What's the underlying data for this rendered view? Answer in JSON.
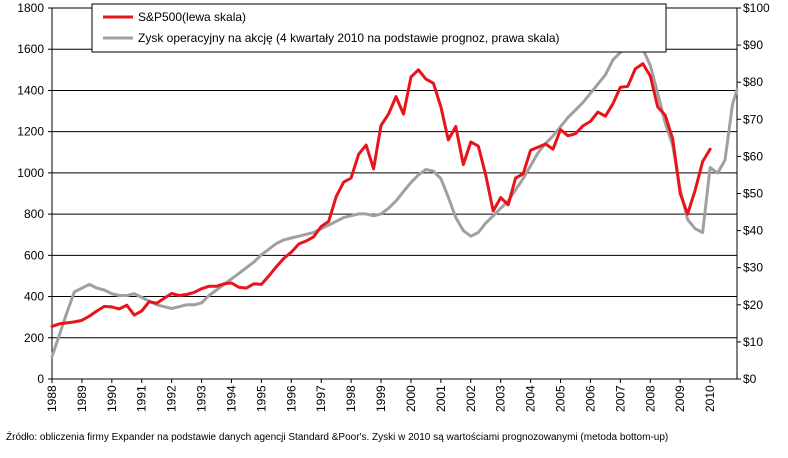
{
  "chart_data": {
    "type": "line",
    "title": "",
    "x_ticks": [
      "1988",
      "1989",
      "1990",
      "1991",
      "1992",
      "1993",
      "1994",
      "1995",
      "1996",
      "1997",
      "1998",
      "1999",
      "2000",
      "2001",
      "2002",
      "2003",
      "2004",
      "2005",
      "2006",
      "2007",
      "2008",
      "2009",
      "2010"
    ],
    "xlim": [
      1988,
      2010.9
    ],
    "y_left": {
      "ticks": [
        "0",
        "200",
        "400",
        "600",
        "800",
        "1000",
        "1200",
        "1400",
        "1600",
        "1800"
      ],
      "lim": [
        0,
        1800
      ]
    },
    "y_right": {
      "ticks": [
        "$0",
        "$10",
        "$20",
        "$30",
        "$40",
        "$50",
        "$60",
        "$70",
        "$80",
        "$90",
        "$100"
      ],
      "lim": [
        0,
        100
      ]
    },
    "grid": "horizontal",
    "legend_position": "top",
    "series": [
      {
        "name": "S&P500(lewa skala)",
        "axis": "left",
        "color": "#e8141c",
        "points": [
          [
            1988.0,
            255
          ],
          [
            1988.25,
            268
          ],
          [
            1988.5,
            272
          ],
          [
            1988.75,
            277
          ],
          [
            1989.0,
            285
          ],
          [
            1989.25,
            305
          ],
          [
            1989.5,
            330
          ],
          [
            1989.75,
            352
          ],
          [
            1990.0,
            350
          ],
          [
            1990.25,
            340
          ],
          [
            1990.5,
            358
          ],
          [
            1990.75,
            310
          ],
          [
            1991.0,
            330
          ],
          [
            1991.25,
            375
          ],
          [
            1991.5,
            368
          ],
          [
            1991.75,
            392
          ],
          [
            1992.0,
            415
          ],
          [
            1992.25,
            405
          ],
          [
            1992.5,
            410
          ],
          [
            1992.75,
            420
          ],
          [
            1993.0,
            438
          ],
          [
            1993.25,
            450
          ],
          [
            1993.5,
            450
          ],
          [
            1993.75,
            462
          ],
          [
            1994.0,
            466
          ],
          [
            1994.25,
            445
          ],
          [
            1994.5,
            441
          ],
          [
            1994.75,
            462
          ],
          [
            1995.0,
            459
          ],
          [
            1995.25,
            500
          ],
          [
            1995.5,
            545
          ],
          [
            1995.75,
            585
          ],
          [
            1996.0,
            615
          ],
          [
            1996.25,
            655
          ],
          [
            1996.5,
            670
          ],
          [
            1996.75,
            690
          ],
          [
            1997.0,
            740
          ],
          [
            1997.25,
            765
          ],
          [
            1997.5,
            885
          ],
          [
            1997.75,
            955
          ],
          [
            1998.0,
            975
          ],
          [
            1998.25,
            1090
          ],
          [
            1998.5,
            1135
          ],
          [
            1998.75,
            1020
          ],
          [
            1999.0,
            1230
          ],
          [
            1999.25,
            1285
          ],
          [
            1999.5,
            1370
          ],
          [
            1999.75,
            1285
          ],
          [
            2000.0,
            1465
          ],
          [
            2000.25,
            1500
          ],
          [
            2000.5,
            1455
          ],
          [
            2000.75,
            1435
          ],
          [
            2001.0,
            1320
          ],
          [
            2001.25,
            1160
          ],
          [
            2001.5,
            1225
          ],
          [
            2001.75,
            1040
          ],
          [
            2002.0,
            1150
          ],
          [
            2002.25,
            1130
          ],
          [
            2002.5,
            990
          ],
          [
            2002.75,
            815
          ],
          [
            2003.0,
            880
          ],
          [
            2003.25,
            845
          ],
          [
            2003.5,
            975
          ],
          [
            2003.75,
            995
          ],
          [
            2004.0,
            1110
          ],
          [
            2004.25,
            1125
          ],
          [
            2004.5,
            1140
          ],
          [
            2004.75,
            1115
          ],
          [
            2005.0,
            1210
          ],
          [
            2005.25,
            1180
          ],
          [
            2005.5,
            1190
          ],
          [
            2005.75,
            1228
          ],
          [
            2006.0,
            1250
          ],
          [
            2006.25,
            1295
          ],
          [
            2006.5,
            1275
          ],
          [
            2006.75,
            1335
          ],
          [
            2007.0,
            1415
          ],
          [
            2007.25,
            1420
          ],
          [
            2007.5,
            1505
          ],
          [
            2007.75,
            1530
          ],
          [
            2008.0,
            1470
          ],
          [
            2008.25,
            1320
          ],
          [
            2008.5,
            1280
          ],
          [
            2008.75,
            1165
          ],
          [
            2009.0,
            900
          ],
          [
            2009.25,
            800
          ],
          [
            2009.5,
            915
          ],
          [
            2009.75,
            1055
          ],
          [
            2010.0,
            1115
          ]
        ]
      },
      {
        "name": "Zysk operacyjny na akcję (4 kwartały 2010 na podstawie prognoz, prawa skala)",
        "axis": "right",
        "color": "#a0a0a0",
        "points": [
          [
            1988.0,
            6
          ],
          [
            1988.25,
            12
          ],
          [
            1988.5,
            18
          ],
          [
            1988.75,
            23.5
          ],
          [
            1989.0,
            24.5
          ],
          [
            1989.25,
            25.5
          ],
          [
            1989.5,
            24.5
          ],
          [
            1989.75,
            24
          ],
          [
            1990.0,
            23
          ],
          [
            1990.25,
            22.5
          ],
          [
            1990.5,
            22.5
          ],
          [
            1990.75,
            23
          ],
          [
            1991.0,
            22
          ],
          [
            1991.25,
            21
          ],
          [
            1991.5,
            20
          ],
          [
            1991.75,
            19.5
          ],
          [
            1992.0,
            19
          ],
          [
            1992.25,
            19.5
          ],
          [
            1992.5,
            20
          ],
          [
            1992.75,
            20
          ],
          [
            1993.0,
            20.5
          ],
          [
            1993.25,
            22.5
          ],
          [
            1993.5,
            24
          ],
          [
            1993.75,
            25.5
          ],
          [
            1994.0,
            27
          ],
          [
            1994.25,
            28.5
          ],
          [
            1994.5,
            30
          ],
          [
            1994.75,
            31.5
          ],
          [
            1995.0,
            33.5
          ],
          [
            1995.25,
            35
          ],
          [
            1995.5,
            36.5
          ],
          [
            1995.75,
            37.5
          ],
          [
            1996.0,
            38
          ],
          [
            1996.25,
            38.5
          ],
          [
            1996.5,
            39
          ],
          [
            1996.75,
            39.5
          ],
          [
            1997.0,
            40.5
          ],
          [
            1997.25,
            41.5
          ],
          [
            1997.5,
            42.5
          ],
          [
            1997.75,
            43.5
          ],
          [
            1998.0,
            44
          ],
          [
            1998.25,
            44.5
          ],
          [
            1998.5,
            44.5
          ],
          [
            1998.75,
            44
          ],
          [
            1999.0,
            44.5
          ],
          [
            1999.25,
            46
          ],
          [
            1999.5,
            48
          ],
          [
            1999.75,
            50.5
          ],
          [
            2000.0,
            53
          ],
          [
            2000.25,
            55
          ],
          [
            2000.5,
            56.5
          ],
          [
            2000.75,
            56
          ],
          [
            2001.0,
            54
          ],
          [
            2001.25,
            49
          ],
          [
            2001.5,
            43.5
          ],
          [
            2001.75,
            40
          ],
          [
            2002.0,
            38.5
          ],
          [
            2002.25,
            39.5
          ],
          [
            2002.5,
            42
          ],
          [
            2002.75,
            44
          ],
          [
            2003.0,
            46
          ],
          [
            2003.25,
            48
          ],
          [
            2003.5,
            51
          ],
          [
            2003.75,
            54
          ],
          [
            2004.0,
            57.5
          ],
          [
            2004.25,
            61
          ],
          [
            2004.5,
            63.5
          ],
          [
            2004.75,
            65.5
          ],
          [
            2005.0,
            68
          ],
          [
            2005.25,
            70.5
          ],
          [
            2005.5,
            72.5
          ],
          [
            2005.75,
            74.5
          ],
          [
            2006.0,
            77
          ],
          [
            2006.25,
            79.5
          ],
          [
            2006.5,
            82
          ],
          [
            2006.75,
            86
          ],
          [
            2007.0,
            88
          ],
          [
            2007.25,
            89.5
          ],
          [
            2007.5,
            91
          ],
          [
            2007.75,
            89
          ],
          [
            2008.0,
            84.5
          ],
          [
            2008.25,
            77
          ],
          [
            2008.5,
            69
          ],
          [
            2008.75,
            63
          ],
          [
            2009.0,
            51
          ],
          [
            2009.25,
            43
          ],
          [
            2009.5,
            40.5
          ],
          [
            2009.75,
            39.5
          ],
          [
            2010.0,
            57
          ],
          [
            2010.25,
            55.5
          ],
          [
            2010.5,
            59
          ],
          [
            2010.75,
            74
          ],
          [
            2010.9,
            78
          ]
        ]
      }
    ],
    "source": "Źródło: obliczenia firmy Expander na podstawie danych agencji Standard &Poor's. Zyski w 2010 są wartościami prognozowanymi (metoda bottom-up)"
  }
}
